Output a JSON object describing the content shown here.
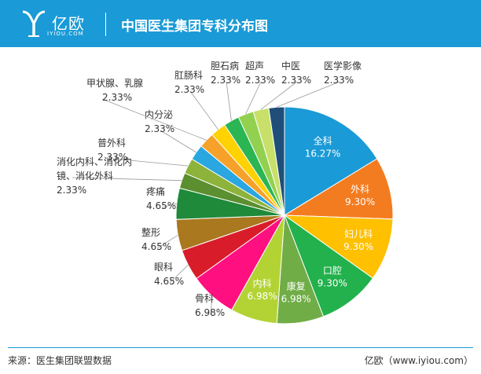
{
  "header": {
    "logo_text": "亿欧",
    "logo_sub": "IYIOU.COM",
    "title": "中国医生集团专科分布图"
  },
  "footer": {
    "source": "来源：医生集团联盟数据",
    "credit": "亿欧（www.iyiou.com）"
  },
  "colors": {
    "header_bg": "#1a9ad6"
  },
  "chart_data": {
    "type": "pie",
    "title": "中国医生集团专科分布图",
    "slices": [
      {
        "label": "全科",
        "value": 16.27,
        "color": "#1a9ad6",
        "inside": true
      },
      {
        "label": "外科",
        "value": 9.3,
        "color": "#f47c20",
        "inside": true
      },
      {
        "label": "妇儿科",
        "value": 9.3,
        "color": "#ffc000",
        "inside": true
      },
      {
        "label": "口腔",
        "value": 9.3,
        "color": "#22b14c",
        "inside": true
      },
      {
        "label": "康复",
        "value": 6.98,
        "color": "#70ad47",
        "inside": true
      },
      {
        "label": "内科",
        "value": 6.98,
        "color": "#b3d334",
        "inside": true
      },
      {
        "label": "骨科",
        "value": 6.98,
        "color": "#ff0f80",
        "inside": false
      },
      {
        "label": "眼科",
        "value": 4.65,
        "color": "#d91c2a",
        "inside": false
      },
      {
        "label": "整形",
        "value": 4.65,
        "color": "#a9781f",
        "inside": false
      },
      {
        "label": "疼痛",
        "value": 4.65,
        "color": "#1e8a3a",
        "inside": false
      },
      {
        "label": "消化内科、消化内镜、消化外科",
        "value": 2.33,
        "color": "#5b8f2f",
        "inside": false
      },
      {
        "label": "普外科",
        "value": 2.33,
        "color": "#8db33a",
        "inside": false
      },
      {
        "label": "内分泌",
        "value": 2.33,
        "color": "#2aa6e0",
        "inside": false
      },
      {
        "label": "甲状腺、乳腺",
        "value": 2.33,
        "color": "#f5a12a",
        "inside": false
      },
      {
        "label": "肛肠科",
        "value": 2.33,
        "color": "#ffd200",
        "inside": false
      },
      {
        "label": "胆石病",
        "value": 2.33,
        "color": "#2cb553",
        "inside": false
      },
      {
        "label": "超声",
        "value": 2.33,
        "color": "#92d050",
        "inside": false
      },
      {
        "label": "中医",
        "value": 2.33,
        "color": "#c8e06a",
        "inside": false
      },
      {
        "label": "医学影像",
        "value": 2.33,
        "color": "#1f4e79",
        "inside": false
      }
    ]
  }
}
